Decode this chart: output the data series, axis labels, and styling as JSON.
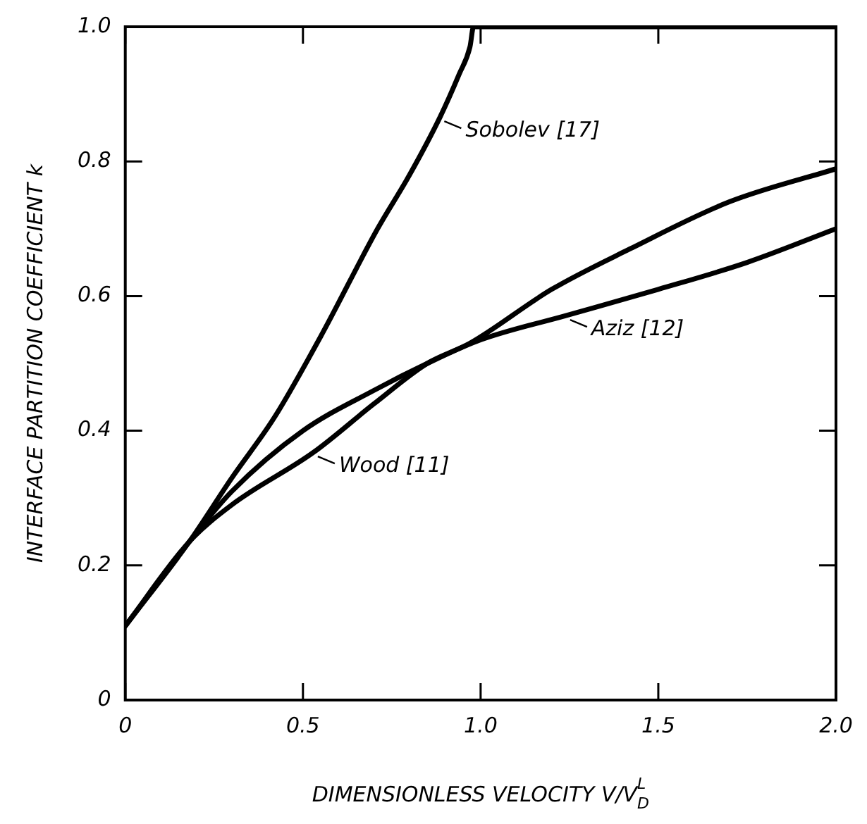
{
  "chart_data": {
    "type": "line",
    "xlabel": "DIMENSIONLESS VELOCITY V/V$_{D}$$^{L}$",
    "ylabel": "INTERFACE PARTITION COEFFICIENT k",
    "xlim": [
      0,
      2
    ],
    "ylim": [
      0,
      1
    ],
    "xticks": [
      {
        "value": 0,
        "label": "0"
      },
      0.5,
      {
        "value": 1,
        "label": "1.0"
      },
      1.5,
      {
        "value": 2,
        "label": "2.0"
      }
    ],
    "yticks": [
      {
        "value": 0,
        "label": "0"
      },
      0.2,
      0.4,
      0.6,
      0.8,
      {
        "value": 1,
        "label": "1.0"
      }
    ],
    "grid": false,
    "annotations": [
      {
        "text": "Sobolev [17]",
        "x": 0.886,
        "y": 0.866
      },
      {
        "text": "Wood [11]",
        "x": 0.53,
        "y": 0.368
      },
      {
        "text": "Aziz [12]",
        "x": 1.24,
        "y": 0.571
      }
    ],
    "marker": "none",
    "line_style": "solid",
    "series": [
      {
        "color": "#000000",
        "x": [
          0,
          0.18,
          0.3,
          0.42,
          0.55,
          0.71,
          0.8,
          0.886,
          0.94,
          0.97,
          0.98,
          2.0
        ],
        "values": [
          0.11,
          0.235,
          0.33,
          0.42,
          0.54,
          0.7,
          0.78,
          0.866,
          0.93,
          0.97,
          1.0,
          1.0
        ]
      },
      {
        "color": "#000000",
        "x": [
          0,
          0.18,
          0.3,
          0.53,
          0.7,
          0.85,
          0.97,
          1.2,
          1.42,
          1.7,
          2.0
        ],
        "values": [
          0.11,
          0.235,
          0.29,
          0.368,
          0.44,
          0.5,
          0.53,
          0.61,
          0.67,
          0.74,
          0.789
        ]
      },
      {
        "color": "#000000",
        "x": [
          0,
          0.18,
          0.3,
          0.5,
          0.7,
          0.85,
          1.0,
          1.24,
          1.5,
          1.75,
          2.0
        ],
        "values": [
          0.11,
          0.235,
          0.31,
          0.4,
          0.46,
          0.5,
          0.535,
          0.571,
          0.61,
          0.65,
          0.7
        ]
      }
    ]
  }
}
